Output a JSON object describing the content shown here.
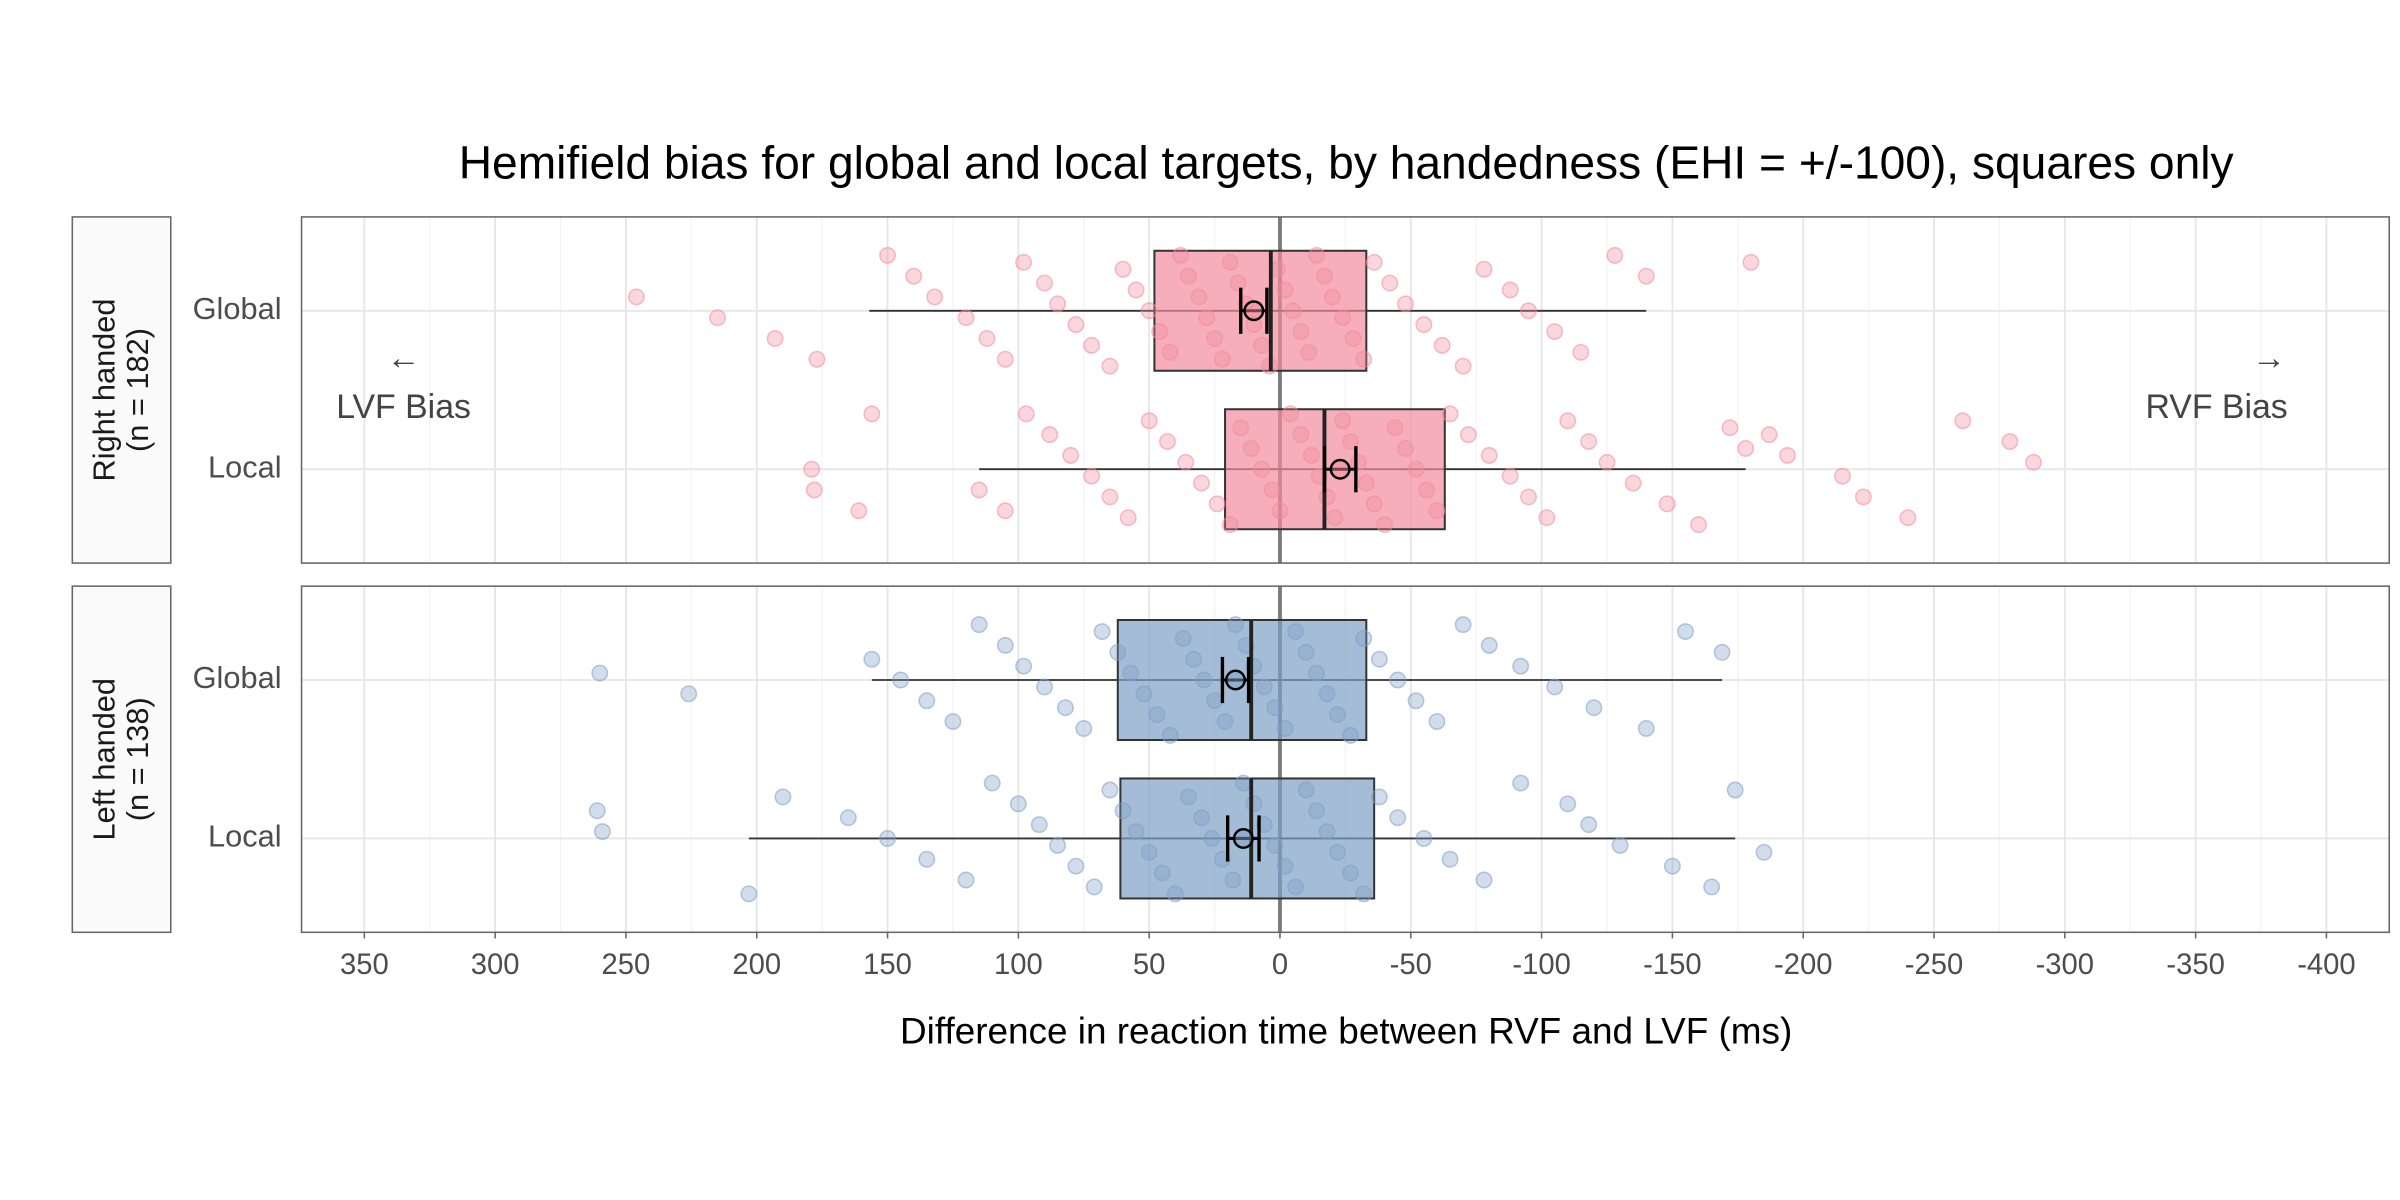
{
  "chart_data": {
    "type": "boxplot",
    "title": "Hemifield bias for global and local targets, by handedness (EHI = +/-100), squares only",
    "xlabel": "Difference in reaction time between RVF and LVF (ms)",
    "xlim": [
      374,
      -424
    ],
    "xticks": [
      350,
      300,
      250,
      200,
      150,
      100,
      50,
      0,
      -50,
      -100,
      -150,
      -200,
      -250,
      -300,
      -350,
      -400
    ],
    "reference_line": 0,
    "grid": true,
    "annotations": [
      {
        "text": "←",
        "x": 335
      },
      {
        "text": "LVF Bias",
        "x": 335
      },
      {
        "text": "→",
        "x": -378
      },
      {
        "text": "RVF Bias",
        "x": -358
      }
    ],
    "panels": [
      {
        "label": "Right handed",
        "sublabel": "(n = 182)",
        "color": "#f28b9c",
        "groups": [
          {
            "name": "Global",
            "whisker_low": -140,
            "q1": -33,
            "median": 3.5,
            "q3": 48,
            "whisker_high": 157,
            "mean": 10,
            "mean_error": 5,
            "points": [
              150,
              140,
              132,
              120,
              112,
              105,
              98,
              90,
              85,
              78,
              72,
              65,
              60,
              55,
              50,
              46,
              42,
              38,
              35,
              31,
              28,
              25,
              22,
              19,
              16,
              13,
              10,
              7,
              4,
              1,
              -2,
              -5,
              -8,
              -11,
              -14,
              -17,
              -20,
              -24,
              -28,
              -32,
              -36,
              -42,
              -48,
              -55,
              -62,
              -70,
              -78,
              -88,
              -95,
              -105,
              -115,
              -128,
              -140,
              246,
              215,
              193,
              177,
              -180
            ]
          },
          {
            "name": "Local",
            "whisker_low": -178,
            "q1": -63,
            "median": -17,
            "q3": 21,
            "whisker_high": 115,
            "mean": -23,
            "mean_error": 6,
            "points": [
              115,
              105,
              97,
              88,
              80,
              72,
              65,
              58,
              50,
              43,
              36,
              30,
              24,
              19,
              15,
              11,
              7,
              3,
              0,
              -4,
              -8,
              -12,
              -15,
              -18,
              -21,
              -24,
              -27,
              -30,
              -33,
              -36,
              -40,
              -44,
              -48,
              -52,
              -56,
              -60,
              -65,
              -72,
              -80,
              -88,
              -95,
              -102,
              -110,
              -118,
              -125,
              -135,
              -148,
              -160,
              -172,
              -178,
              179,
              178,
              161,
              156,
              -187,
              -194,
              -215,
              -223,
              -240,
              -261,
              -279,
              -288
            ]
          }
        ]
      },
      {
        "label": "Left handed",
        "sublabel": "(n = 138)",
        "color": "#7f9fc6",
        "groups": [
          {
            "name": "Global",
            "whisker_low": -169,
            "q1": -33,
            "median": 11,
            "q3": 62,
            "whisker_high": 156,
            "mean": 17,
            "mean_error": 5,
            "points": [
              156,
              145,
              135,
              125,
              115,
              105,
              98,
              90,
              82,
              75,
              68,
              62,
              57,
              52,
              47,
              42,
              37,
              33,
              29,
              25,
              21,
              17,
              13,
              10,
              6,
              2,
              -2,
              -6,
              -10,
              -14,
              -18,
              -22,
              -27,
              -32,
              -38,
              -45,
              -52,
              -60,
              -70,
              -80,
              -92,
              -105,
              -120,
              -140,
              -155,
              -169,
              260,
              226
            ]
          },
          {
            "name": "Local",
            "whisker_low": -174,
            "q1": -36,
            "median": 11,
            "q3": 61,
            "whisker_high": 203,
            "mean": 14,
            "mean_error": 6,
            "points": [
              203,
              190,
              165,
              150,
              135,
              120,
              110,
              100,
              92,
              85,
              78,
              71,
              65,
              60,
              55,
              50,
              45,
              40,
              35,
              30,
              26,
              22,
              18,
              14,
              10,
              6,
              2,
              -2,
              -6,
              -10,
              -14,
              -18,
              -22,
              -27,
              -32,
              -38,
              -45,
              -55,
              -65,
              -78,
              -92,
              -110,
              -118,
              -130,
              -150,
              -165,
              -174,
              261,
              259,
              -185
            ]
          }
        ]
      }
    ]
  }
}
